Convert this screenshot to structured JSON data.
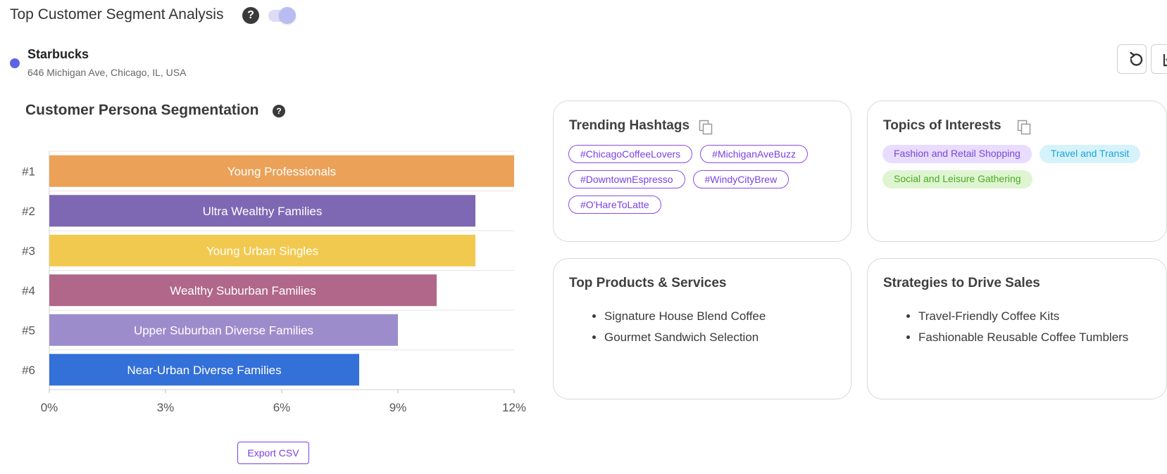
{
  "header": {
    "title": "Top Customer Segment Analysis",
    "help_icon": "question-circle-icon",
    "toggle_on": true
  },
  "location": {
    "name": "Starbucks",
    "address": "646 Michigan Ave, Chicago, IL, USA",
    "dot_color": "#5e63e6"
  },
  "toolbar": {
    "refresh_icon": "refresh-icon",
    "download_icon": "download-icon"
  },
  "chart_section": {
    "title": "Customer Persona Segmentation",
    "export_label": "Export CSV"
  },
  "chart_data": {
    "type": "bar",
    "orientation": "horizontal",
    "ranks": [
      "#1",
      "#2",
      "#3",
      "#4",
      "#5",
      "#6"
    ],
    "categories": [
      "Young Professionals",
      "Ultra Wealthy Families",
      "Young Urban Singles",
      "Wealthy Suburban Families",
      "Upper Suburban Diverse Families",
      "Near-Urban Diverse Families"
    ],
    "values": [
      12,
      11,
      11,
      10,
      9,
      8
    ],
    "colors": [
      "#eba157",
      "#7e68b4",
      "#f2c94f",
      "#b0678a",
      "#9d8ccc",
      "#3370d8"
    ],
    "xticks": [
      "0%",
      "3%",
      "6%",
      "9%",
      "12%"
    ],
    "xtick_values": [
      0,
      3,
      6,
      9,
      12
    ],
    "xlim": [
      0,
      12
    ],
    "unit": "%",
    "grid": true
  },
  "cards": {
    "hashtags": {
      "title": "Trending Hashtags",
      "copy_icon": "copy-icon",
      "items": [
        "#ChicagoCoffeeLovers",
        "#MichiganAveBuzz",
        "#DowntownEspresso",
        "#WindyCityBrew",
        "#O'HareToLatte"
      ]
    },
    "topics": {
      "title": "Topics of Interests",
      "copy_icon": "copy-icon",
      "items": [
        {
          "label": "Fashion and Retail Shopping",
          "color": "#7a47d6"
        },
        {
          "label": "Travel and Transit",
          "color": "#1ba4d8"
        },
        {
          "label": "Social and Leisure Gathering",
          "color": "#4ba925"
        }
      ]
    },
    "products": {
      "title": "Top Products & Services",
      "items": [
        "Signature House Blend Coffee",
        "Gourmet Sandwich Selection"
      ]
    },
    "strategies": {
      "title": "Strategies to Drive Sales",
      "items": [
        "Travel-Friendly Coffee Kits",
        "Fashionable Reusable Coffee Tumblers"
      ]
    }
  }
}
